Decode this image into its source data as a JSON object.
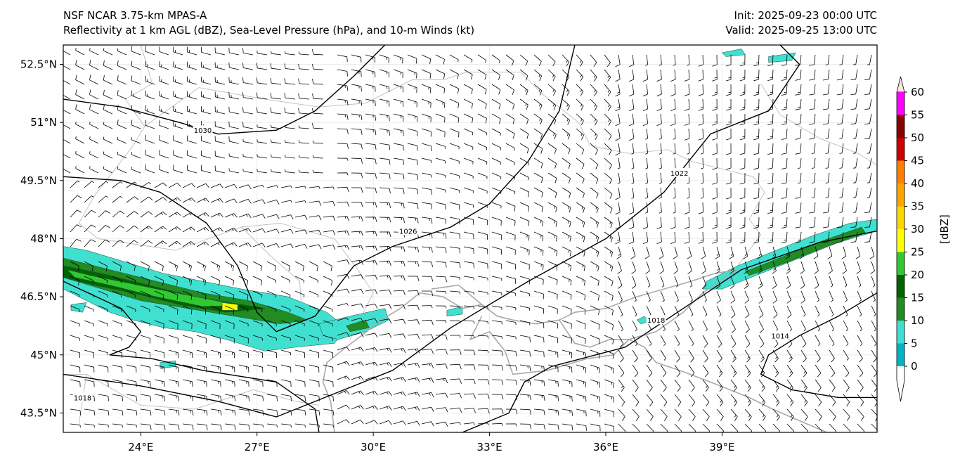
{
  "header": {
    "title_line1": "NSF NCAR 3.75-km MPAS-A",
    "title_line2": "Reflectivity at 1 km AGL (dBZ), Sea-Level Pressure (hPa), and 10-m Winds (kt)",
    "init": "Init: 2025-09-23 00:00 UTC",
    "valid": "Valid: 2025-09-25 13:00 UTC"
  },
  "map": {
    "lon_range": [
      22.0,
      43.0
    ],
    "lat_range": [
      43.0,
      53.0
    ],
    "lon_ticks": [
      {
        "value": 24,
        "label": "24°E"
      },
      {
        "value": 27,
        "label": "27°E"
      },
      {
        "value": 30,
        "label": "30°E"
      },
      {
        "value": 33,
        "label": "33°E"
      },
      {
        "value": 36,
        "label": "36°E"
      },
      {
        "value": 39,
        "label": "39°E"
      }
    ],
    "lat_ticks": [
      {
        "value": 52.5,
        "label": "52.5°N"
      },
      {
        "value": 51.0,
        "label": "51°N"
      },
      {
        "value": 49.5,
        "label": "49.5°N"
      },
      {
        "value": 48.0,
        "label": "48°N"
      },
      {
        "value": 46.5,
        "label": "46.5°N"
      },
      {
        "value": 45.0,
        "label": "45°N"
      },
      {
        "value": 43.5,
        "label": "43.5°N"
      }
    ],
    "isobars": [
      {
        "label": "1030",
        "points": [
          [
            22.0,
            51.6
          ],
          [
            23.5,
            51.4
          ],
          [
            25.0,
            51.0
          ],
          [
            26.0,
            50.7
          ],
          [
            27.5,
            50.8
          ],
          [
            28.5,
            51.3
          ],
          [
            29.5,
            52.2
          ],
          [
            30.3,
            53.0
          ]
        ],
        "label_at": [
          25.6,
          50.8
        ]
      },
      {
        "label": "1026",
        "points": [
          [
            22.0,
            49.6
          ],
          [
            23.5,
            49.5
          ],
          [
            24.5,
            49.2
          ],
          [
            25.7,
            48.4
          ],
          [
            26.5,
            47.3
          ],
          [
            27.0,
            46.1
          ],
          [
            27.5,
            45.6
          ],
          [
            28.5,
            46.0
          ],
          [
            29.5,
            47.3
          ],
          [
            30.5,
            47.8
          ],
          [
            32.0,
            48.3
          ],
          [
            33.0,
            48.9
          ],
          [
            34.0,
            50.0
          ],
          [
            34.8,
            51.3
          ],
          [
            35.2,
            53.0
          ]
        ],
        "label_at": [
          30.9,
          48.2
        ]
      },
      {
        "label": "1022",
        "points": [
          [
            22.0,
            44.5
          ],
          [
            24.0,
            44.2
          ],
          [
            26.0,
            43.8
          ],
          [
            27.5,
            43.4
          ],
          [
            29.0,
            44.0
          ],
          [
            30.5,
            44.6
          ],
          [
            32.0,
            45.7
          ],
          [
            34.0,
            46.9
          ],
          [
            36.0,
            48.0
          ],
          [
            37.5,
            49.2
          ],
          [
            38.7,
            50.7
          ],
          [
            40.2,
            51.3
          ],
          [
            41.0,
            52.5
          ],
          [
            40.5,
            53.0
          ]
        ],
        "label_at": [
          37.9,
          49.7
        ]
      },
      {
        "label": "1018",
        "points": [
          [
            22.0,
            46.9
          ],
          [
            23.5,
            46.2
          ],
          [
            24.0,
            45.6
          ],
          [
            23.7,
            45.2
          ],
          [
            23.2,
            45.0
          ],
          [
            24.3,
            44.9
          ],
          [
            25.6,
            44.6
          ],
          [
            27.5,
            44.3
          ],
          [
            28.5,
            43.6
          ],
          [
            28.6,
            43.0
          ]
        ],
        "label_at": [
          22.5,
          43.9
        ]
      },
      {
        "label": "1018",
        "points": [
          [
            32.3,
            43.0
          ],
          [
            33.5,
            43.5
          ],
          [
            33.9,
            44.3
          ],
          [
            34.6,
            44.7
          ],
          [
            36.5,
            45.2
          ],
          [
            38.0,
            46.2
          ],
          [
            39.5,
            47.2
          ],
          [
            41.5,
            47.9
          ],
          [
            43.0,
            48.2
          ]
        ],
        "label_at": [
          37.3,
          45.9
        ]
      },
      {
        "label": "1014",
        "points": [
          [
            43.0,
            46.6
          ],
          [
            42.0,
            46.0
          ],
          [
            41.0,
            45.5
          ],
          [
            40.2,
            45.0
          ],
          [
            40.0,
            44.5
          ],
          [
            40.8,
            44.1
          ],
          [
            42.0,
            43.9
          ],
          [
            43.0,
            43.9
          ]
        ],
        "label_at": [
          40.5,
          45.5
        ]
      }
    ],
    "coastlines": [
      [
        [
          29.0,
          43.0
        ],
        [
          28.9,
          43.8
        ],
        [
          28.7,
          44.3
        ],
        [
          28.8,
          44.8
        ],
        [
          29.3,
          45.2
        ],
        [
          29.7,
          45.5
        ],
        [
          30.2,
          45.9
        ],
        [
          30.7,
          46.2
        ],
        [
          31.2,
          46.6
        ],
        [
          31.8,
          46.5
        ],
        [
          32.3,
          46.2
        ],
        [
          32.8,
          46.3
        ],
        [
          33.2,
          46.0
        ],
        [
          33.6,
          45.9
        ],
        [
          34.2,
          45.8
        ],
        [
          34.8,
          45.9
        ],
        [
          35.2,
          45.3
        ],
        [
          35.6,
          45.2
        ],
        [
          36.1,
          45.4
        ],
        [
          36.6,
          45.4
        ],
        [
          36.2,
          45.0
        ],
        [
          35.5,
          44.9
        ],
        [
          34.5,
          44.6
        ],
        [
          33.6,
          44.5
        ],
        [
          33.4,
          45.1
        ],
        [
          33.0,
          45.6
        ],
        [
          32.5,
          45.4
        ],
        [
          32.8,
          46.0
        ]
      ],
      [
        [
          36.6,
          45.4
        ],
        [
          37.3,
          45.6
        ],
        [
          38.0,
          46.1
        ],
        [
          38.5,
          46.6
        ],
        [
          39.1,
          47.0
        ],
        [
          39.4,
          47.2
        ],
        [
          38.8,
          47.1
        ],
        [
          38.2,
          46.9
        ],
        [
          37.5,
          46.7
        ],
        [
          36.8,
          46.5
        ],
        [
          36.0,
          46.2
        ],
        [
          35.2,
          46.1
        ],
        [
          34.8,
          45.9
        ]
      ],
      [
        [
          36.6,
          45.4
        ],
        [
          37.0,
          45.2
        ],
        [
          37.3,
          44.8
        ],
        [
          37.9,
          44.6
        ],
        [
          38.7,
          44.3
        ],
        [
          39.7,
          43.9
        ],
        [
          40.3,
          43.6
        ],
        [
          41.0,
          43.3
        ],
        [
          41.7,
          43.0
        ]
      ],
      [
        [
          32.8,
          46.3
        ],
        [
          32.2,
          46.8
        ],
        [
          31.5,
          46.7
        ]
      ]
    ],
    "radar_cells": [
      {
        "points": [
          [
            22.0,
            47.8
          ],
          [
            22.6,
            47.7
          ],
          [
            23.6,
            47.4
          ],
          [
            24.6,
            47.1
          ],
          [
            25.6,
            46.9
          ],
          [
            26.6,
            46.7
          ],
          [
            27.8,
            46.5
          ],
          [
            28.8,
            46.1
          ],
          [
            29.3,
            45.7
          ],
          [
            29.0,
            45.3
          ],
          [
            28.0,
            45.2
          ],
          [
            27.2,
            45.1
          ],
          [
            26.2,
            45.4
          ],
          [
            25.4,
            45.6
          ],
          [
            24.6,
            45.7
          ],
          [
            23.8,
            45.9
          ],
          [
            23.2,
            46.1
          ],
          [
            22.8,
            46.3
          ],
          [
            22.4,
            46.5
          ],
          [
            22.0,
            46.7
          ]
        ],
        "dbz": 10
      },
      {
        "points": [
          [
            22.0,
            47.5
          ],
          [
            23.2,
            47.2
          ],
          [
            24.4,
            46.9
          ],
          [
            25.6,
            46.6
          ],
          [
            26.8,
            46.4
          ],
          [
            27.8,
            46.1
          ],
          [
            28.3,
            45.9
          ],
          [
            27.6,
            45.8
          ],
          [
            26.4,
            46.0
          ],
          [
            25.2,
            46.2
          ],
          [
            24.0,
            46.4
          ],
          [
            23.0,
            46.7
          ],
          [
            22.0,
            47.0
          ]
        ],
        "dbz": 15
      },
      {
        "points": [
          [
            22.0,
            47.3
          ],
          [
            23.0,
            47.1
          ],
          [
            24.2,
            46.8
          ],
          [
            25.4,
            46.5
          ],
          [
            26.6,
            46.3
          ],
          [
            27.2,
            46.2
          ],
          [
            26.2,
            46.1
          ],
          [
            25.0,
            46.3
          ],
          [
            23.8,
            46.6
          ],
          [
            22.8,
            46.8
          ],
          [
            22.0,
            47.0
          ]
        ],
        "dbz": 20
      },
      {
        "points": [
          [
            22.1,
            47.2
          ],
          [
            22.7,
            47.05
          ],
          [
            23.7,
            46.85
          ],
          [
            24.9,
            46.6
          ],
          [
            26.2,
            46.35
          ],
          [
            26.6,
            46.28
          ],
          [
            25.6,
            46.25
          ],
          [
            24.4,
            46.5
          ],
          [
            23.2,
            46.8
          ],
          [
            22.3,
            47.0
          ]
        ],
        "dbz": 25
      },
      {
        "points": [
          [
            26.1,
            46.35
          ],
          [
            26.5,
            46.3
          ],
          [
            26.5,
            46.15
          ],
          [
            26.1,
            46.15
          ]
        ],
        "dbz": 30
      },
      {
        "points": [
          [
            28.6,
            45.8
          ],
          [
            29.4,
            46.0
          ],
          [
            30.3,
            46.2
          ],
          [
            30.4,
            45.9
          ],
          [
            29.8,
            45.6
          ],
          [
            29.1,
            45.4
          ],
          [
            28.7,
            45.5
          ]
        ],
        "dbz": 10
      },
      {
        "points": [
          [
            29.3,
            45.75
          ],
          [
            29.8,
            45.9
          ],
          [
            29.9,
            45.7
          ],
          [
            29.4,
            45.6
          ]
        ],
        "dbz": 15
      },
      {
        "points": [
          [
            38.6,
            46.9
          ],
          [
            39.4,
            47.3
          ],
          [
            40.4,
            47.7
          ],
          [
            41.4,
            48.1
          ],
          [
            42.3,
            48.4
          ],
          [
            43.0,
            48.5
          ],
          [
            43.0,
            48.2
          ],
          [
            42.0,
            47.9
          ],
          [
            41.0,
            47.5
          ],
          [
            40.0,
            47.1
          ],
          [
            39.0,
            46.7
          ],
          [
            38.5,
            46.7
          ]
        ],
        "dbz": 10
      },
      {
        "points": [
          [
            39.6,
            47.15
          ],
          [
            40.6,
            47.55
          ],
          [
            41.6,
            47.95
          ],
          [
            42.6,
            48.3
          ],
          [
            42.7,
            48.15
          ],
          [
            41.7,
            47.8
          ],
          [
            40.7,
            47.4
          ],
          [
            39.7,
            47.05
          ]
        ],
        "dbz": 15
      },
      {
        "points": [
          [
            40.2,
            52.7
          ],
          [
            40.9,
            52.8
          ],
          [
            40.8,
            52.6
          ],
          [
            40.2,
            52.55
          ]
        ],
        "dbz": 10
      },
      {
        "points": [
          [
            39.0,
            52.8
          ],
          [
            39.5,
            52.9
          ],
          [
            39.6,
            52.75
          ],
          [
            39.1,
            52.7
          ]
        ],
        "dbz": 10
      },
      {
        "points": [
          [
            36.8,
            45.9
          ],
          [
            37.0,
            46.0
          ],
          [
            37.1,
            45.85
          ],
          [
            36.9,
            45.8
          ]
        ],
        "dbz": 10
      },
      {
        "points": [
          [
            31.9,
            46.15
          ],
          [
            32.3,
            46.25
          ],
          [
            32.3,
            46.05
          ],
          [
            31.9,
            46.0
          ]
        ],
        "dbz": 10
      },
      {
        "points": [
          [
            24.5,
            44.8
          ],
          [
            24.9,
            44.85
          ],
          [
            24.9,
            44.7
          ],
          [
            24.5,
            44.65
          ]
        ],
        "dbz": 10
      },
      {
        "points": [
          [
            22.2,
            46.3
          ],
          [
            22.6,
            46.35
          ],
          [
            22.5,
            46.1
          ],
          [
            22.2,
            46.15
          ]
        ],
        "dbz": 10
      }
    ],
    "colorbar": {
      "label": "[dBZ]",
      "ticks": [
        "0",
        "5",
        "10",
        "15",
        "20",
        "25",
        "30",
        "35",
        "40",
        "45",
        "50",
        "55",
        "60"
      ],
      "colors": [
        "#008b8b",
        "#00b4c8",
        "#40e0d0",
        "#228b22",
        "#006400",
        "#32c832",
        "#ffff00",
        "#ffd700",
        "#ffa500",
        "#ff7f00",
        "#cd0000",
        "#8b0000",
        "#ff00ff",
        "#ffe4e1"
      ],
      "under_color": "#ffffff",
      "over_color": "#ffe4e1"
    },
    "colors": {
      "isobar": "#000000",
      "coastline": "#a9a9a9",
      "border": "#bdbdbd",
      "barb": "#000000",
      "gridline": "#e8e8e8"
    }
  }
}
